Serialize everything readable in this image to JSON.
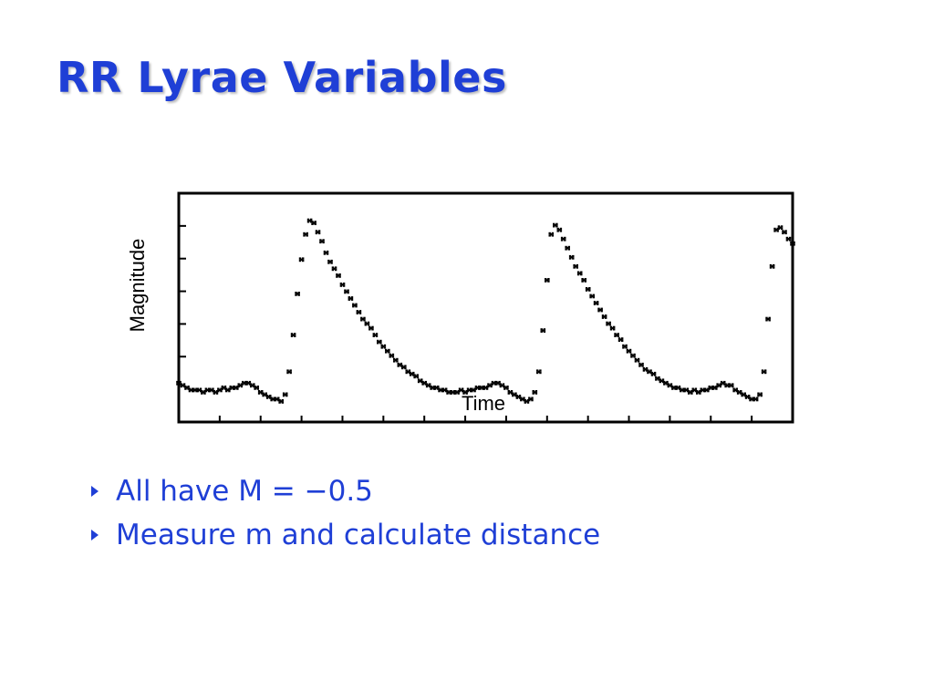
{
  "slide": {
    "title": "RR Lyrae Variables",
    "accent_color": "#1f3fd6",
    "bullets": [
      {
        "icon": "triangle-bullet-icon",
        "text": "All have M = −0.5"
      },
      {
        "icon": "triangle-bullet-icon",
        "text": "Measure m and calculate distance"
      }
    ]
  },
  "chart_data": {
    "type": "scatter",
    "title": "",
    "xlabel": "Time",
    "ylabel": "Magnitude",
    "grid": false,
    "xlim": [
      0,
      1.5
    ],
    "ylim": [
      0,
      1
    ],
    "x_tick_count": 15,
    "y_tick_count": 6,
    "point_color": "#000000",
    "series": [
      {
        "x": [
          0.0,
          0.01,
          0.02,
          0.03,
          0.04,
          0.05,
          0.06,
          0.07,
          0.08,
          0.09,
          0.1,
          0.11,
          0.12,
          0.13,
          0.14,
          0.15,
          0.16,
          0.17,
          0.18,
          0.19,
          0.2,
          0.21,
          0.22,
          0.23,
          0.24,
          0.25,
          0.26,
          0.27,
          0.28,
          0.29,
          0.3,
          0.31,
          0.32,
          0.33,
          0.34,
          0.35,
          0.36,
          0.37,
          0.38,
          0.39,
          0.4,
          0.41,
          0.42,
          0.43,
          0.44,
          0.45,
          0.46,
          0.47,
          0.48,
          0.49,
          0.5,
          0.51,
          0.52,
          0.53,
          0.54,
          0.55,
          0.56,
          0.57,
          0.58,
          0.59,
          0.6,
          0.61,
          0.62,
          0.63,
          0.64,
          0.65,
          0.66,
          0.67,
          0.68,
          0.69,
          0.7,
          0.71,
          0.72,
          0.73,
          0.74,
          0.75,
          0.76,
          0.77,
          0.78,
          0.79,
          0.8,
          0.81,
          0.82,
          0.83,
          0.84,
          0.85,
          0.86,
          0.87,
          0.88,
          0.89,
          0.9,
          0.91,
          0.92,
          0.93,
          0.94,
          0.95,
          0.96,
          0.97,
          0.98,
          0.99,
          1.0,
          1.01,
          1.02,
          1.03,
          1.04,
          1.05,
          1.06,
          1.07,
          1.08,
          1.09,
          1.1,
          1.11,
          1.12,
          1.13,
          1.14,
          1.15,
          1.16,
          1.17,
          1.18,
          1.19,
          1.2,
          1.21,
          1.22,
          1.23,
          1.24,
          1.25,
          1.26,
          1.27,
          1.28,
          1.29,
          1.3,
          1.31,
          1.32,
          1.33,
          1.34,
          1.35,
          1.36,
          1.37,
          1.38,
          1.39,
          1.4,
          1.41,
          1.42,
          1.43,
          1.44,
          1.45,
          1.46,
          1.47,
          1.48,
          1.49,
          1.5
        ],
        "y": [
          0.17,
          0.16,
          0.15,
          0.14,
          0.14,
          0.14,
          0.13,
          0.14,
          0.14,
          0.13,
          0.14,
          0.15,
          0.14,
          0.15,
          0.15,
          0.16,
          0.17,
          0.17,
          0.16,
          0.15,
          0.13,
          0.12,
          0.11,
          0.1,
          0.1,
          0.09,
          0.12,
          0.22,
          0.38,
          0.56,
          0.71,
          0.82,
          0.88,
          0.87,
          0.83,
          0.79,
          0.74,
          0.7,
          0.67,
          0.64,
          0.6,
          0.57,
          0.54,
          0.51,
          0.48,
          0.45,
          0.43,
          0.41,
          0.38,
          0.35,
          0.33,
          0.31,
          0.29,
          0.27,
          0.25,
          0.24,
          0.22,
          0.21,
          0.2,
          0.18,
          0.17,
          0.16,
          0.15,
          0.15,
          0.14,
          0.14,
          0.13,
          0.13,
          0.13,
          0.14,
          0.13,
          0.14,
          0.14,
          0.15,
          0.15,
          0.15,
          0.16,
          0.17,
          0.17,
          0.16,
          0.15,
          0.13,
          0.12,
          0.11,
          0.1,
          0.09,
          0.1,
          0.13,
          0.22,
          0.4,
          0.62,
          0.82,
          0.86,
          0.84,
          0.8,
          0.76,
          0.72,
          0.68,
          0.65,
          0.62,
          0.58,
          0.55,
          0.52,
          0.49,
          0.46,
          0.43,
          0.41,
          0.38,
          0.36,
          0.33,
          0.31,
          0.29,
          0.27,
          0.25,
          0.23,
          0.22,
          0.21,
          0.19,
          0.18,
          0.17,
          0.16,
          0.15,
          0.15,
          0.14,
          0.14,
          0.13,
          0.14,
          0.13,
          0.14,
          0.14,
          0.15,
          0.15,
          0.16,
          0.17,
          0.16,
          0.16,
          0.14,
          0.13,
          0.12,
          0.11,
          0.1,
          0.1,
          0.12,
          0.22,
          0.45,
          0.68,
          0.84,
          0.85,
          0.83,
          0.8,
          0.78
        ]
      }
    ]
  }
}
